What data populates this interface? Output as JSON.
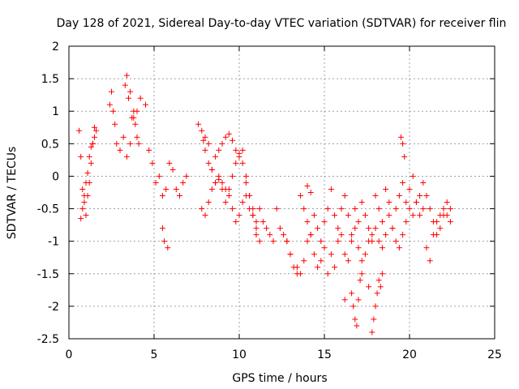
{
  "chart_data": {
    "type": "scatter",
    "title": "Day 128 of 2021, Sidereal Day-to-day VTEC variation (SDTVAR) for receiver flin",
    "xlabel": "GPS time / hours",
    "ylabel": "SDTVAR / TECUs",
    "xlim": [
      0,
      25
    ],
    "ylim": [
      -2.5,
      2
    ],
    "xticks": [
      0,
      5,
      10,
      15,
      20,
      25
    ],
    "yticks": [
      -2.5,
      -2,
      -1.5,
      -1,
      -0.5,
      0,
      0.5,
      1,
      1.5,
      2
    ],
    "xtick_labels": [
      "0",
      "5",
      "10",
      "15",
      "20",
      "25"
    ],
    "ytick_labels": [
      "-2.5",
      "-2",
      "-1.5",
      "-1",
      "-0.5",
      "0",
      "0.5",
      "1",
      "1.5",
      "2"
    ],
    "grid": true,
    "marker": "+",
    "color": "#ff0000",
    "series": [
      {
        "name": "SDTVAR",
        "x": [
          0.6,
          0.7,
          0.8,
          0.9,
          1.0,
          1.1,
          1.2,
          1.3,
          1.4,
          1.5,
          0.7,
          0.8,
          0.9,
          1.0,
          1.1,
          1.2,
          1.3,
          1.4,
          1.5,
          1.6,
          2.4,
          2.5,
          2.6,
          2.7,
          2.8,
          3.0,
          3.2,
          3.3,
          3.4,
          3.5,
          3.6,
          3.7,
          3.8,
          3.9,
          4.0,
          4.1,
          3.4,
          3.6,
          3.8,
          4.0,
          4.2,
          4.5,
          4.7,
          4.9,
          5.1,
          5.3,
          5.5,
          5.7,
          5.9,
          6.1,
          6.3,
          6.5,
          6.7,
          6.9,
          5.5,
          5.6,
          5.8,
          7.6,
          7.8,
          7.9,
          8.0,
          8.2,
          8.4,
          8.6,
          8.8,
          9.0,
          9.2,
          9.4,
          9.6,
          9.8,
          10.0,
          10.2,
          10.4,
          10.6,
          10.8,
          11.0,
          11.2,
          8.0,
          8.2,
          8.4,
          8.6,
          8.8,
          9.0,
          9.2,
          9.4,
          9.6,
          9.8,
          10.0,
          10.2,
          10.4,
          10.6,
          10.8,
          11.0,
          7.8,
          8.0,
          8.2,
          8.4,
          8.6,
          8.8,
          9.0,
          9.2,
          9.4,
          9.6,
          9.8,
          10.0,
          10.2,
          10.4,
          10.6,
          10.8,
          11.0,
          11.2,
          11.4,
          11.6,
          11.8,
          12.0,
          12.2,
          12.4,
          12.6,
          12.8,
          13.0,
          12.8,
          13.0,
          13.2,
          13.4,
          13.6,
          13.8,
          14.0,
          14.2,
          14.4,
          14.6,
          14.8,
          15.0,
          15.2,
          15.4,
          15.6,
          15.8,
          16.0,
          16.2,
          16.4,
          16.6,
          16.8,
          17.0,
          17.2,
          17.4,
          17.6,
          17.8,
          18.0,
          18.2,
          18.4,
          18.6,
          18.8,
          19.0,
          19.2,
          19.4,
          19.6,
          19.8,
          20.0,
          20.2,
          20.4,
          20.6,
          20.8,
          21.0,
          21.2,
          21.4,
          21.6,
          21.8,
          22.0,
          22.2,
          22.4,
          13.4,
          13.6,
          13.8,
          14.0,
          14.2,
          14.4,
          14.6,
          14.8,
          15.0,
          15.2,
          15.4,
          15.6,
          15.8,
          16.0,
          16.2,
          16.4,
          16.6,
          16.8,
          17.0,
          17.2,
          17.4,
          17.6,
          17.8,
          18.0,
          18.2,
          18.4,
          18.6,
          18.8,
          19.0,
          19.2,
          19.4,
          19.6,
          19.8,
          20.0,
          20.2,
          20.4,
          20.6,
          20.8,
          21.0,
          21.2,
          21.4,
          21.6,
          21.8,
          22.0,
          22.2,
          22.4,
          16.6,
          16.7,
          16.8,
          16.9,
          17.0,
          17.1,
          17.2,
          17.8,
          17.9,
          18.0,
          18.1,
          18.2,
          18.3,
          18.4,
          19.5,
          19.6,
          19.7,
          16.2,
          17.6,
          14.0,
          14.2
        ],
        "y": [
          0.7,
          0.3,
          -0.2,
          -0.4,
          -0.6,
          -0.3,
          -0.1,
          0.2,
          0.5,
          0.75,
          -0.65,
          -0.5,
          -0.3,
          -0.1,
          0.05,
          0.3,
          0.45,
          0.5,
          0.6,
          0.7,
          1.1,
          1.3,
          1.0,
          0.8,
          0.5,
          0.4,
          0.6,
          1.4,
          1.55,
          1.2,
          1.3,
          0.9,
          1.0,
          0.8,
          0.6,
          0.5,
          0.3,
          0.5,
          0.9,
          1.0,
          1.2,
          1.1,
          0.4,
          0.2,
          -0.1,
          0.0,
          -0.3,
          -0.2,
          0.2,
          0.1,
          -0.2,
          -0.3,
          -0.1,
          0.0,
          -0.8,
          -1.0,
          -1.1,
          0.8,
          0.7,
          0.55,
          0.4,
          0.2,
          0.1,
          0.3,
          0.4,
          0.5,
          0.6,
          0.65,
          0.55,
          0.4,
          0.3,
          0.2,
          -0.1,
          -0.3,
          -0.5,
          -0.8,
          -1.0,
          0.6,
          0.5,
          0.1,
          -0.1,
          0.0,
          -0.2,
          -0.4,
          -0.2,
          0.0,
          0.2,
          0.35,
          0.4,
          0.0,
          -0.3,
          -0.6,
          -0.9,
          -0.5,
          -0.6,
          -0.4,
          -0.2,
          -0.1,
          -0.05,
          -0.1,
          -0.2,
          -0.3,
          -0.5,
          -0.7,
          -0.6,
          -0.4,
          -0.3,
          -0.5,
          -0.6,
          -0.7,
          -0.5,
          -0.7,
          -0.8,
          -0.9,
          -1.0,
          -0.5,
          -0.8,
          -0.9,
          -1.0,
          -1.2,
          -1.0,
          -1.2,
          -1.4,
          -1.5,
          -0.3,
          -0.5,
          -0.7,
          -0.9,
          -0.6,
          -0.8,
          -1.0,
          -0.7,
          -0.5,
          -0.2,
          -0.6,
          -0.8,
          -0.5,
          -0.3,
          -0.6,
          -0.9,
          -0.5,
          -0.7,
          -0.4,
          -0.6,
          -0.8,
          -1.0,
          -0.3,
          -0.5,
          -0.7,
          -0.2,
          -0.4,
          -0.8,
          -0.5,
          -0.3,
          -0.1,
          -0.4,
          -0.2,
          0.0,
          -0.4,
          -0.6,
          -0.1,
          -0.3,
          -0.5,
          -0.7,
          -0.9,
          -0.8,
          -0.6,
          -0.4,
          -0.7,
          -1.4,
          -1.5,
          -1.3,
          -1.0,
          -0.9,
          -1.2,
          -1.4,
          -1.3,
          -1.1,
          -1.5,
          -1.2,
          -1.4,
          -1.0,
          -0.9,
          -1.2,
          -1.3,
          -1.0,
          -0.8,
          -1.1,
          -1.3,
          -1.2,
          -1.0,
          -0.9,
          -0.8,
          -1.0,
          -1.1,
          -0.9,
          -0.6,
          -0.8,
          -1.0,
          -1.1,
          -0.9,
          -0.7,
          -0.5,
          -0.6,
          -0.4,
          -0.3,
          -0.5,
          -1.1,
          -1.3,
          -0.9,
          -0.7,
          -0.6,
          -0.5,
          -0.6,
          -0.5,
          -1.8,
          -2.0,
          -2.2,
          -2.3,
          -1.9,
          -1.6,
          -1.5,
          -2.4,
          -2.2,
          -2.0,
          -1.8,
          -1.6,
          -1.7,
          -1.5,
          0.6,
          0.5,
          0.3,
          -1.9,
          -1.7,
          -0.15,
          -0.25
        ]
      }
    ]
  }
}
